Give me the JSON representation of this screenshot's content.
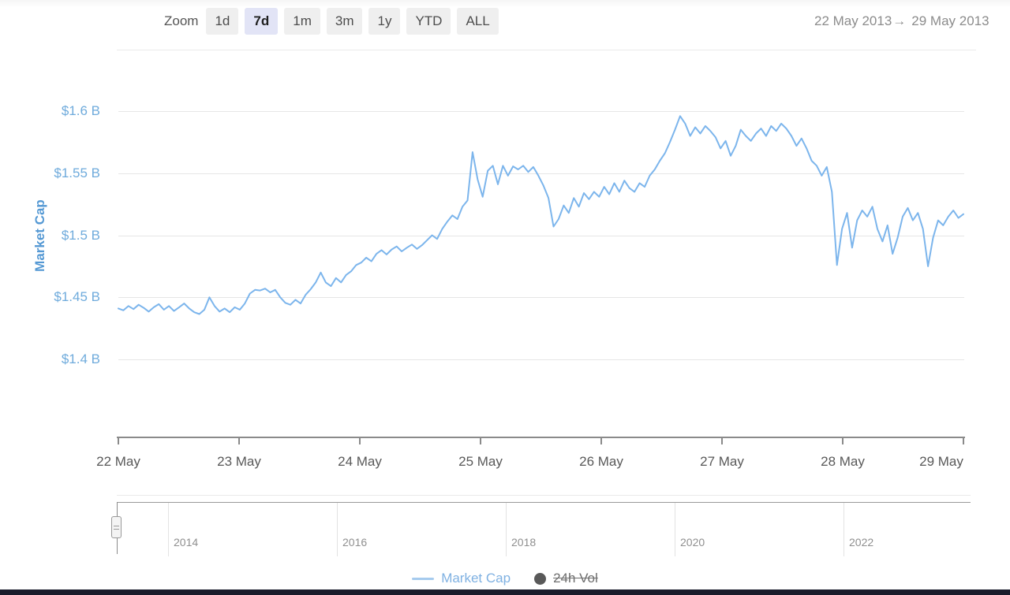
{
  "header": {
    "zoom_label": "Zoom",
    "zoom_buttons": [
      {
        "label": "1d",
        "selected": false
      },
      {
        "label": "7d",
        "selected": true
      },
      {
        "label": "1m",
        "selected": false
      },
      {
        "label": "3m",
        "selected": false
      },
      {
        "label": "1y",
        "selected": false
      },
      {
        "label": "YTD",
        "selected": false
      },
      {
        "label": "ALL",
        "selected": false
      }
    ],
    "date_range": {
      "start": "22 May 2013",
      "arrow": "→",
      "end": "29 May 2013"
    }
  },
  "chart_data": {
    "type": "line",
    "title": "",
    "ylabel": "Market Cap",
    "unit": "$B",
    "ylim": [
      1.4,
      1.6
    ],
    "grid": true,
    "legend_position": "bottom",
    "x_range": [
      "22 May 2013",
      "29 May 2013"
    ],
    "x_ticks": [
      "22 May",
      "23 May",
      "24 May",
      "25 May",
      "26 May",
      "27 May",
      "28 May",
      "29 May"
    ],
    "y_ticks": [
      {
        "label": "$1.6 B",
        "value": 1.6
      },
      {
        "label": "$1.55 B",
        "value": 1.55
      },
      {
        "label": "$1.5 B",
        "value": 1.5
      },
      {
        "label": "$1.45 B",
        "value": 1.45
      },
      {
        "label": "$1.4 B",
        "value": 1.4
      }
    ],
    "series": [
      {
        "name": "Market Cap",
        "color": "#7cb5ec",
        "visible": true,
        "values": [
          1.441,
          1.4395,
          1.443,
          1.4405,
          1.444,
          1.4415,
          1.4385,
          1.442,
          1.4445,
          1.44,
          1.443,
          1.439,
          1.442,
          1.445,
          1.441,
          1.438,
          1.4365,
          1.44,
          1.45,
          1.443,
          1.4385,
          1.441,
          1.438,
          1.442,
          1.44,
          1.445,
          1.453,
          1.456,
          1.4555,
          1.457,
          1.454,
          1.456,
          1.45,
          1.4455,
          1.444,
          1.448,
          1.445,
          1.452,
          1.4565,
          1.462,
          1.47,
          1.462,
          1.459,
          1.4655,
          1.462,
          1.468,
          1.471,
          1.476,
          1.478,
          1.482,
          1.479,
          1.485,
          1.488,
          1.4845,
          1.4885,
          1.491,
          1.487,
          1.49,
          1.4925,
          1.489,
          1.492,
          1.496,
          1.5,
          1.497,
          1.505,
          1.511,
          1.516,
          1.513,
          1.523,
          1.528,
          1.567,
          1.545,
          1.531,
          1.552,
          1.556,
          1.541,
          1.556,
          1.548,
          1.5555,
          1.553,
          1.556,
          1.551,
          1.555,
          1.548,
          1.54,
          1.53,
          1.507,
          1.513,
          1.524,
          1.518,
          1.53,
          1.523,
          1.534,
          1.529,
          1.535,
          1.531,
          1.539,
          1.533,
          1.542,
          1.535,
          1.544,
          1.538,
          1.535,
          1.542,
          1.539,
          1.548,
          1.553,
          1.56,
          1.566,
          1.575,
          1.585,
          1.596,
          1.59,
          1.58,
          1.587,
          1.582,
          1.588,
          1.584,
          1.579,
          1.57,
          1.576,
          1.564,
          1.572,
          1.585,
          1.58,
          1.576,
          1.582,
          1.586,
          1.58,
          1.588,
          1.584,
          1.59,
          1.586,
          1.58,
          1.572,
          1.578,
          1.57,
          1.56,
          1.556,
          1.548,
          1.555,
          1.535,
          1.476,
          1.505,
          1.518,
          1.49,
          1.512,
          1.52,
          1.515,
          1.523,
          1.505,
          1.495,
          1.508,
          1.485,
          1.498,
          1.515,
          1.522,
          1.512,
          1.518,
          1.505,
          1.475,
          1.498,
          1.512,
          1.508,
          1.515,
          1.52,
          1.514,
          1.517
        ]
      },
      {
        "name": "24h Vol",
        "color": "#595959",
        "visible": false,
        "values": []
      }
    ]
  },
  "navigator": {
    "year_ticks": [
      "2014",
      "2016",
      "2018",
      "2020",
      "2022"
    ]
  },
  "legend": {
    "items": [
      {
        "label": "Market Cap",
        "marker": "line",
        "color": "#a6cbee",
        "disabled": false
      },
      {
        "label": "24h Vol",
        "marker": "circle",
        "color": "#595959",
        "disabled": true
      }
    ]
  },
  "colors": {
    "series_line": "#7cb5ec",
    "axis_label_blue": "#6fabdc",
    "axis_title_blue": "#5599d4",
    "selected_button_bg": "#e2e4f6",
    "button_bg": "#efefef",
    "gridline": "#e6e6e6",
    "bottom_bar": "#1a1b2a"
  }
}
